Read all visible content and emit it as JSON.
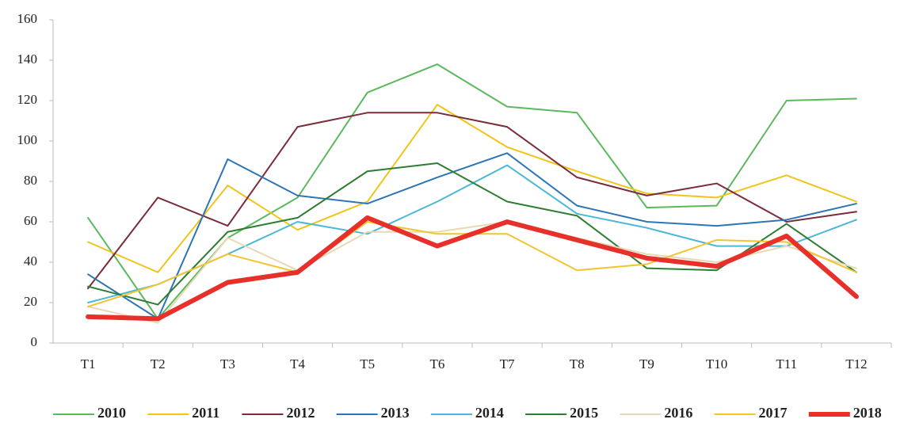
{
  "chart_data": {
    "type": "line",
    "categories": [
      "T1",
      "T2",
      "T3",
      "T4",
      "T5",
      "T6",
      "T7",
      "T8",
      "T9",
      "T10",
      "T11",
      "T12"
    ],
    "ylim": [
      0,
      160
    ],
    "yticks": [
      0,
      20,
      40,
      60,
      80,
      100,
      120,
      140,
      160
    ],
    "grid": false,
    "legend": "bottom",
    "series": [
      {
        "name": "2010",
        "color": "#5cb85c",
        "linewidth": 2,
        "values": [
          62,
          12,
          52,
          72,
          124,
          138,
          117,
          114,
          67,
          68,
          120,
          121
        ]
      },
      {
        "name": "2011",
        "color": "#f0c419",
        "linewidth": 2,
        "values": [
          50,
          35,
          78,
          56,
          70,
          118,
          97,
          85,
          74,
          72,
          83,
          70
        ]
      },
      {
        "name": "2012",
        "color": "#7b2c3a",
        "linewidth": 2,
        "values": [
          27,
          72,
          58,
          107,
          114,
          114,
          107,
          82,
          73,
          79,
          60,
          65
        ]
      },
      {
        "name": "2013",
        "color": "#2e75b6",
        "linewidth": 2,
        "values": [
          34,
          12,
          91,
          73,
          69,
          82,
          94,
          68,
          60,
          58,
          61,
          69
        ]
      },
      {
        "name": "2014",
        "color": "#4bb8d8",
        "linewidth": 2,
        "values": [
          20,
          29,
          44,
          60,
          54,
          70,
          88,
          64,
          57,
          48,
          48,
          61
        ]
      },
      {
        "name": "2015",
        "color": "#2e7d32",
        "linewidth": 2,
        "values": [
          28,
          19,
          55,
          62,
          85,
          89,
          70,
          63,
          37,
          36,
          59,
          35
        ]
      },
      {
        "name": "2016",
        "color": "#e8d9b5",
        "linewidth": 2,
        "values": [
          18,
          10,
          52,
          36,
          55,
          55,
          60,
          52,
          44,
          40,
          48,
          37
        ]
      },
      {
        "name": "2017",
        "color": "#f4c430",
        "linewidth": 2,
        "values": [
          18,
          29,
          44,
          35,
          60,
          54,
          54,
          36,
          39,
          51,
          50,
          35
        ]
      },
      {
        "name": "2018",
        "color": "#e8302a",
        "linewidth": 6,
        "values": [
          13,
          12,
          30,
          35,
          62,
          48,
          60,
          51,
          42,
          38,
          53,
          23
        ]
      }
    ]
  }
}
